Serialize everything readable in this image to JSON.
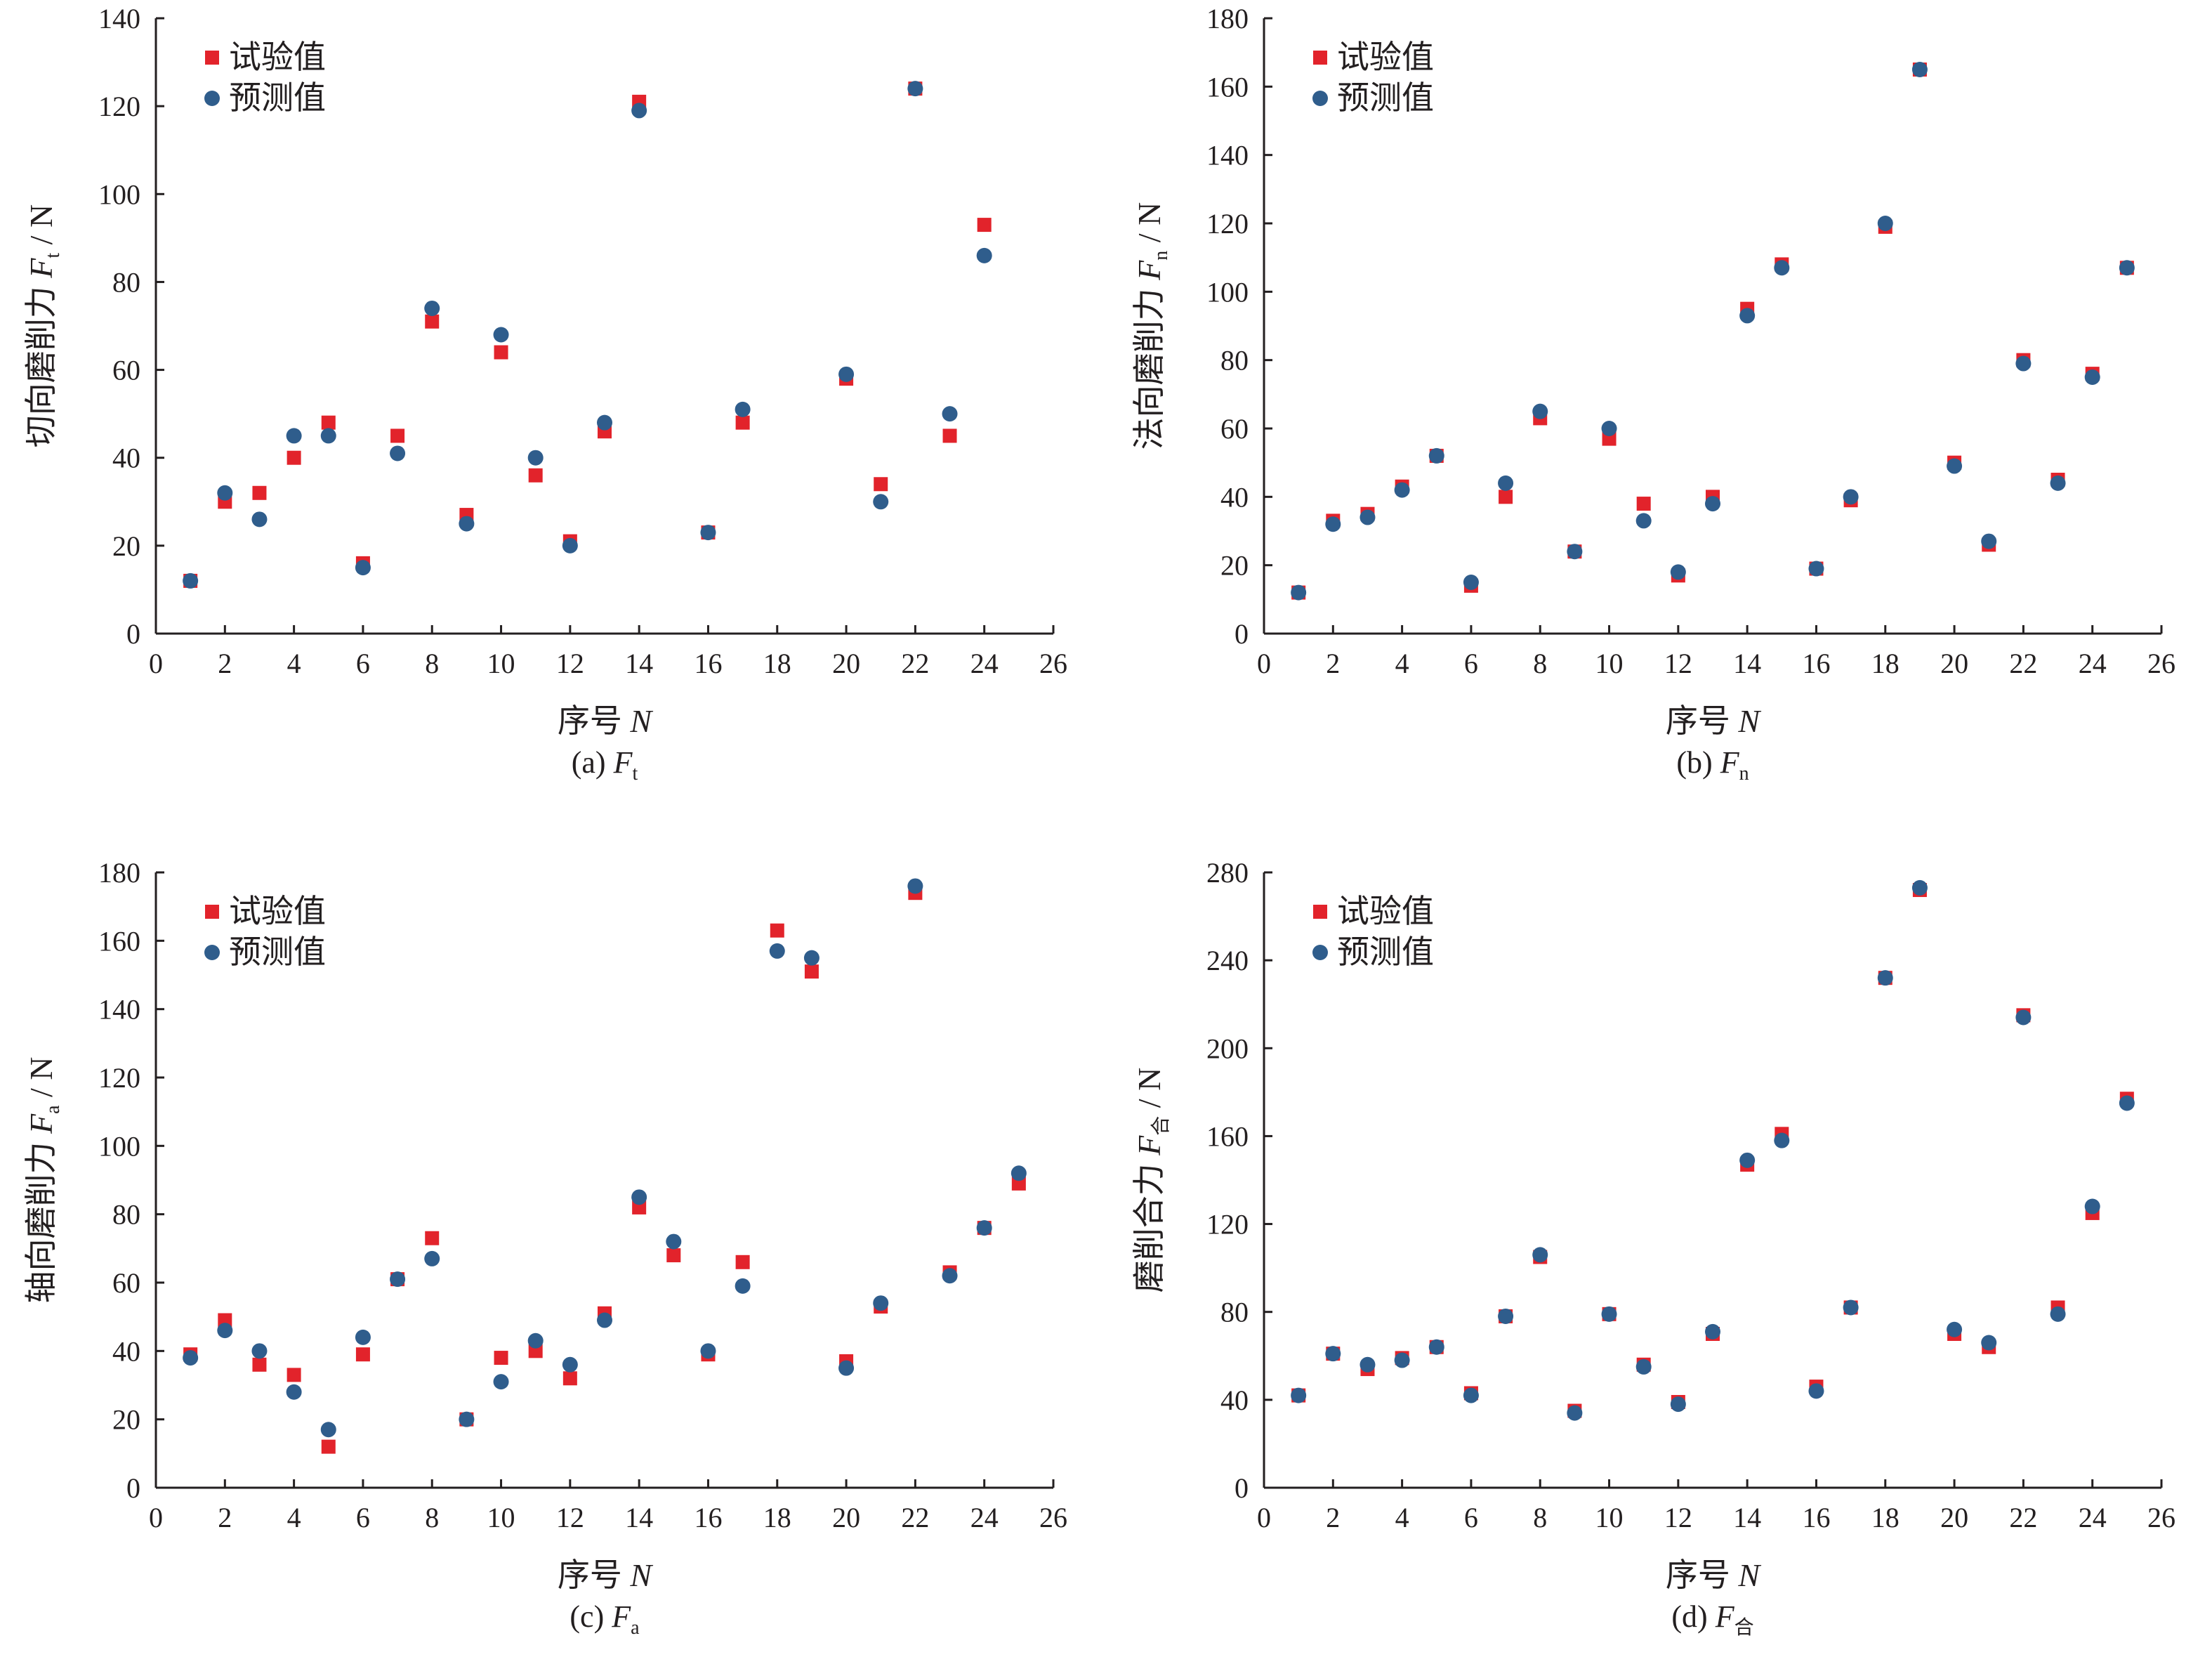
{
  "legend": {
    "experimental": "试验值",
    "predicted": "预测值"
  },
  "colors": {
    "experimental": "#e2232b",
    "predicted": "#2f5d8c",
    "axis": "#231f20"
  },
  "chart_data": [
    {
      "id": "a",
      "type": "scatter",
      "caption_prefix": "(a) ",
      "caption_symbol": "F",
      "caption_sub": "t",
      "xlabel_text": "序号 ",
      "xlabel_symbol": "N",
      "ylabel_text": "切向磨削力 ",
      "ylabel_symbol": "F",
      "ylabel_sub": "t",
      "ylabel_unit": " / N",
      "xlim": [
        0,
        26
      ],
      "ylim": [
        0,
        140
      ],
      "xticks": [
        0,
        2,
        4,
        6,
        8,
        10,
        12,
        14,
        16,
        18,
        20,
        22,
        24,
        26
      ],
      "yticks": [
        0,
        20,
        40,
        60,
        80,
        100,
        120,
        140
      ],
      "legend_position": "top-left",
      "series": [
        {
          "name": "试验值",
          "marker": "square",
          "x": [
            1,
            2,
            3,
            4,
            5,
            6,
            7,
            8,
            9,
            10,
            11,
            12,
            13,
            14,
            16,
            17,
            20,
            21,
            22,
            23,
            24
          ],
          "y": [
            12,
            30,
            32,
            40,
            48,
            16,
            45,
            71,
            27,
            64,
            36,
            21,
            46,
            121,
            23,
            48,
            58,
            34,
            124,
            45,
            93
          ]
        },
        {
          "name": "预测值",
          "marker": "circle",
          "x": [
            1,
            2,
            3,
            4,
            5,
            6,
            7,
            8,
            9,
            10,
            11,
            12,
            13,
            14,
            16,
            17,
            20,
            21,
            22,
            23,
            24
          ],
          "y": [
            12,
            32,
            26,
            45,
            45,
            15,
            41,
            74,
            25,
            68,
            40,
            20,
            48,
            119,
            23,
            51,
            59,
            30,
            124,
            50,
            86
          ]
        }
      ]
    },
    {
      "id": "b",
      "type": "scatter",
      "caption_prefix": "(b) ",
      "caption_symbol": "F",
      "caption_sub": "n",
      "xlabel_text": "序号 ",
      "xlabel_symbol": "N",
      "ylabel_text": "法向磨削力 ",
      "ylabel_symbol": "F",
      "ylabel_sub": "n",
      "ylabel_unit": " / N",
      "xlim": [
        0,
        26
      ],
      "ylim": [
        0,
        180
      ],
      "xticks": [
        0,
        2,
        4,
        6,
        8,
        10,
        12,
        14,
        16,
        18,
        20,
        22,
        24,
        26
      ],
      "yticks": [
        0,
        20,
        40,
        60,
        80,
        100,
        120,
        140,
        160,
        180
      ],
      "legend_position": "top-left",
      "series": [
        {
          "name": "试验值",
          "marker": "square",
          "x": [
            1,
            2,
            3,
            4,
            5,
            6,
            7,
            8,
            9,
            10,
            11,
            12,
            13,
            14,
            15,
            16,
            17,
            18,
            19,
            20,
            21,
            22,
            23,
            24,
            25
          ],
          "y": [
            12,
            33,
            35,
            43,
            52,
            14,
            40,
            63,
            24,
            57,
            38,
            17,
            40,
            95,
            108,
            19,
            39,
            119,
            165,
            50,
            26,
            80,
            45,
            76,
            107
          ]
        },
        {
          "name": "预测值",
          "marker": "circle",
          "x": [
            1,
            2,
            3,
            4,
            5,
            6,
            7,
            8,
            9,
            10,
            11,
            12,
            13,
            14,
            15,
            16,
            17,
            18,
            19,
            20,
            21,
            22,
            23,
            24,
            25
          ],
          "y": [
            12,
            32,
            34,
            42,
            52,
            15,
            44,
            65,
            24,
            60,
            33,
            18,
            38,
            93,
            107,
            19,
            40,
            120,
            165,
            49,
            27,
            79,
            44,
            75,
            107
          ]
        }
      ]
    },
    {
      "id": "c",
      "type": "scatter",
      "caption_prefix": "(c) ",
      "caption_symbol": "F",
      "caption_sub": "a",
      "xlabel_text": "序号 ",
      "xlabel_symbol": "N",
      "ylabel_text": "轴向磨削力 ",
      "ylabel_symbol": "F",
      "ylabel_sub": "a",
      "ylabel_unit": " / N",
      "xlim": [
        0,
        26
      ],
      "ylim": [
        0,
        180
      ],
      "xticks": [
        0,
        2,
        4,
        6,
        8,
        10,
        12,
        14,
        16,
        18,
        20,
        22,
        24,
        26
      ],
      "yticks": [
        0,
        20,
        40,
        60,
        80,
        100,
        120,
        140,
        160,
        180
      ],
      "legend_position": "top-left",
      "series": [
        {
          "name": "试验值",
          "marker": "square",
          "x": [
            1,
            2,
            3,
            4,
            5,
            6,
            7,
            8,
            9,
            10,
            11,
            12,
            13,
            14,
            15,
            16,
            17,
            18,
            19,
            20,
            21,
            22,
            23,
            24,
            25
          ],
          "y": [
            39,
            49,
            36,
            33,
            12,
            39,
            61,
            73,
            20,
            38,
            40,
            32,
            51,
            82,
            68,
            39,
            66,
            163,
            151,
            37,
            53,
            174,
            63,
            76,
            89
          ]
        },
        {
          "name": "预测值",
          "marker": "circle",
          "x": [
            1,
            2,
            3,
            4,
            5,
            6,
            7,
            8,
            9,
            10,
            11,
            12,
            13,
            14,
            15,
            16,
            17,
            18,
            19,
            20,
            21,
            22,
            23,
            24,
            25
          ],
          "y": [
            38,
            46,
            40,
            28,
            17,
            44,
            61,
            67,
            20,
            31,
            43,
            36,
            49,
            85,
            72,
            40,
            59,
            157,
            155,
            35,
            54,
            176,
            62,
            76,
            92
          ]
        }
      ]
    },
    {
      "id": "d",
      "type": "scatter",
      "caption_prefix": "(d) ",
      "caption_symbol": "F",
      "caption_sub": "合",
      "xlabel_text": "序号 ",
      "xlabel_symbol": "N",
      "ylabel_text": "磨削合力 ",
      "ylabel_symbol": "F",
      "ylabel_sub": "合",
      "ylabel_unit": " / N",
      "xlim": [
        0,
        26
      ],
      "ylim": [
        0,
        280
      ],
      "xticks": [
        0,
        2,
        4,
        6,
        8,
        10,
        12,
        14,
        16,
        18,
        20,
        22,
        24,
        26
      ],
      "yticks": [
        0,
        40,
        80,
        120,
        160,
        200,
        240,
        280
      ],
      "legend_position": "top-left",
      "series": [
        {
          "name": "试验值",
          "marker": "square",
          "x": [
            1,
            2,
            3,
            4,
            5,
            6,
            7,
            8,
            9,
            10,
            11,
            12,
            13,
            14,
            15,
            16,
            17,
            18,
            19,
            20,
            21,
            22,
            23,
            24,
            25
          ],
          "y": [
            42,
            61,
            54,
            59,
            64,
            43,
            78,
            105,
            35,
            79,
            56,
            39,
            70,
            147,
            161,
            46,
            82,
            232,
            272,
            70,
            64,
            215,
            82,
            125,
            177
          ]
        },
        {
          "name": "预测值",
          "marker": "circle",
          "x": [
            1,
            2,
            3,
            4,
            5,
            6,
            7,
            8,
            9,
            10,
            11,
            12,
            13,
            14,
            15,
            16,
            17,
            18,
            19,
            20,
            21,
            22,
            23,
            24,
            25
          ],
          "y": [
            42,
            61,
            56,
            58,
            64,
            42,
            78,
            106,
            34,
            79,
            55,
            38,
            71,
            149,
            158,
            44,
            82,
            232,
            273,
            72,
            66,
            214,
            79,
            128,
            175
          ]
        }
      ]
    }
  ]
}
